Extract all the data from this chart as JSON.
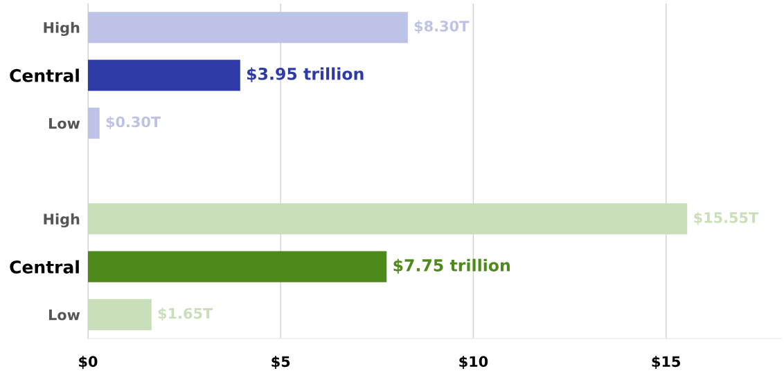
{
  "chart_data": {
    "type": "bar",
    "orientation": "horizontal",
    "categories": [
      "High",
      "Central",
      "Low",
      null,
      "High",
      "Central",
      "Low"
    ],
    "values": [
      8.3,
      3.95,
      0.3,
      null,
      15.55,
      7.75,
      1.65
    ],
    "colors": [
      "#bcc3e6",
      "#2e3aa8",
      "#bcc3e6",
      "#ffffff",
      "#c9dfb9",
      "#4e8a1b",
      "#c9dfb9"
    ],
    "value_labels": [
      "$8.30T",
      "$3.95 trillion",
      "$0.30T",
      null,
      "$15.55T",
      "$7.75 trillion",
      "$1.65T"
    ],
    "xlim": [
      0,
      18
    ],
    "xticks": [
      {
        "value": 0,
        "label": "$0"
      },
      {
        "value": 5,
        "label": "$5"
      },
      {
        "value": 10,
        "label": "$10"
      },
      {
        "value": 15,
        "label": "$15"
      }
    ],
    "grid": "x"
  }
}
